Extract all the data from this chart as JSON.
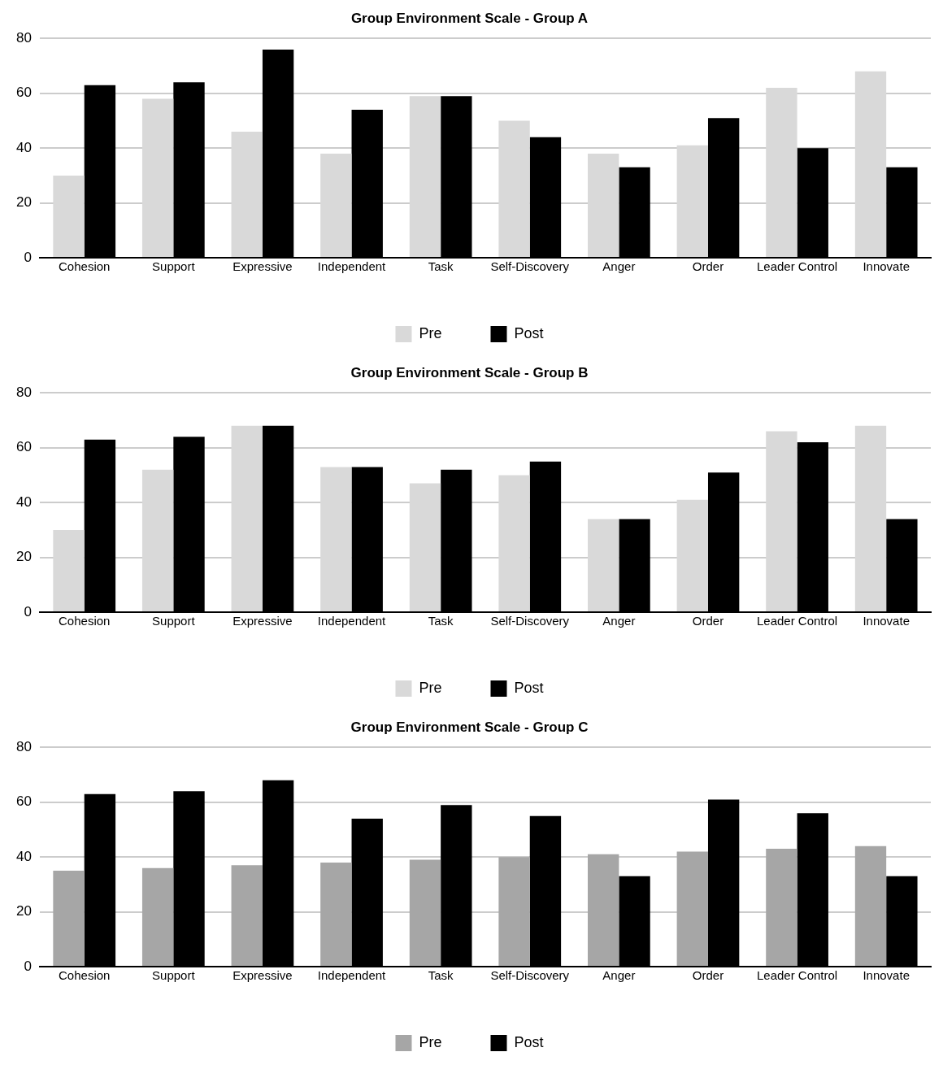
{
  "chart_data": [
    {
      "type": "bar",
      "title": "Group Environment Scale - Group A",
      "categories": [
        "Cohesion",
        "Support",
        "Expressive",
        "Independent",
        "Task",
        "Self-Discovery",
        "Anger",
        "Order",
        "Leader Control",
        "Innovate"
      ],
      "series": [
        {
          "name": "Pre",
          "color": "#d9d9d9",
          "values": [
            30,
            58,
            46,
            38,
            59,
            50,
            38,
            41,
            62,
            68
          ]
        },
        {
          "name": "Post",
          "color": "#000000",
          "values": [
            63,
            64,
            76,
            54,
            59,
            44,
            33,
            51,
            40,
            33
          ]
        }
      ],
      "ylim": [
        0,
        80
      ],
      "yticks": [
        0,
        20,
        40,
        60,
        80
      ],
      "grid": "y",
      "legend": "bottom"
    },
    {
      "type": "bar",
      "title": "Group Environment Scale - Group B",
      "categories": [
        "Cohesion",
        "Support",
        "Expressive",
        "Independent",
        "Task",
        "Self-Discovery",
        "Anger",
        "Order",
        "Leader Control",
        "Innovate"
      ],
      "series": [
        {
          "name": "Pre",
          "color": "#d9d9d9",
          "values": [
            30,
            52,
            68,
            53,
            47,
            50,
            34,
            41,
            66,
            68
          ]
        },
        {
          "name": "Post",
          "color": "#000000",
          "values": [
            63,
            64,
            68,
            53,
            52,
            55,
            34,
            51,
            62,
            34
          ]
        }
      ],
      "ylim": [
        0,
        80
      ],
      "yticks": [
        0,
        20,
        40,
        60,
        80
      ],
      "grid": "y",
      "legend": "bottom"
    },
    {
      "type": "bar",
      "title": "Group Environment Scale - Group C",
      "categories": [
        "Cohesion",
        "Support",
        "Expressive",
        "Independent",
        "Task",
        "Self-Discovery",
        "Anger",
        "Order",
        "Leader Control",
        "Innovate"
      ],
      "series": [
        {
          "name": "Pre",
          "color": "#a6a6a6",
          "values": [
            35,
            36,
            37,
            38,
            39,
            40,
            41,
            42,
            43,
            44
          ]
        },
        {
          "name": "Post",
          "color": "#000000",
          "values": [
            63,
            64,
            68,
            54,
            59,
            55,
            33,
            61,
            56,
            33
          ]
        }
      ],
      "ylim": [
        0,
        80
      ],
      "yticks": [
        0,
        20,
        40,
        60,
        80
      ],
      "grid": "y",
      "legend": "bottom"
    }
  ]
}
